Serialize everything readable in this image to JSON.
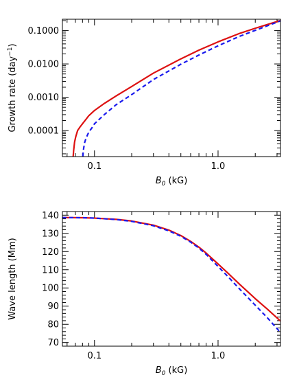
{
  "chart_data": [
    {
      "type": "line",
      "xscale": "log",
      "yscale": "log",
      "xlim": [
        0.055,
        3.2
      ],
      "ylim": [
        1.65e-05,
        0.22
      ],
      "xticks": [
        0.1,
        1.0
      ],
      "xtick_labels": [
        "0.1",
        "1.0"
      ],
      "yticks": [
        0.0001,
        0.001,
        0.01,
        0.1
      ],
      "ytick_labels": [
        "0.0001",
        "0.0010",
        "0.0100",
        "0.1000"
      ],
      "xlabel": "B",
      "xlabel_sub": "0",
      "xlabel_unit": "(kG)",
      "ylabel": "Growth rate (day",
      "ylabel_sup": "−1",
      "ylabel_close": ")",
      "series": [
        {
          "color": "#dd1111",
          "style": "solid",
          "x": [
            0.0672,
            0.0678,
            0.069,
            0.0705,
            0.073,
            0.076,
            0.08,
            0.09,
            0.1,
            0.12,
            0.15,
            0.2,
            0.3,
            0.5,
            0.7,
            1.0,
            1.5,
            2.0,
            3.2
          ],
          "y": [
            1.65e-05,
            2.5e-05,
            4.5e-05,
            6.5e-05,
            0.0001,
            0.000125,
            0.00016,
            0.00028,
            0.0004,
            0.00065,
            0.0011,
            0.0021,
            0.0053,
            0.0142,
            0.026,
            0.046,
            0.083,
            0.118,
            0.202
          ]
        },
        {
          "color": "#1a1aee",
          "style": "dashed",
          "x": [
            0.0805,
            0.0812,
            0.083,
            0.0855,
            0.09,
            0.096,
            0.1,
            0.12,
            0.15,
            0.2,
            0.3,
            0.5,
            0.7,
            1.0,
            1.5,
            2.0,
            3.2
          ],
          "y": [
            1.65e-05,
            2.5e-05,
            4.2e-05,
            6e-05,
            9e-05,
            0.000125,
            0.00016,
            0.0003,
            0.0006,
            0.0012,
            0.0034,
            0.0098,
            0.0185,
            0.035,
            0.068,
            0.102,
            0.196
          ]
        }
      ]
    },
    {
      "type": "line",
      "xscale": "log",
      "yscale": "linear",
      "xlim": [
        0.055,
        3.2
      ],
      "ylim": [
        68,
        142
      ],
      "xticks": [
        0.1,
        1.0
      ],
      "xtick_labels": [
        "0.1",
        "1.0"
      ],
      "yticks": [
        70,
        80,
        90,
        100,
        110,
        120,
        130,
        140
      ],
      "ytick_labels": [
        "70",
        "80",
        "90",
        "100",
        "110",
        "120",
        "130",
        "140"
      ],
      "xlabel": "B",
      "xlabel_sub": "0",
      "xlabel_unit": "(kG)",
      "ylabel": "Wave length (Mm)",
      "series": [
        {
          "color": "#dd1111",
          "style": "solid",
          "x": [
            0.055,
            0.08,
            0.1,
            0.15,
            0.2,
            0.3,
            0.4,
            0.5,
            0.6,
            0.7,
            0.8,
            1.0,
            1.2,
            1.5,
            2.0,
            2.5,
            3.2
          ],
          "y": [
            138.7,
            138.6,
            138.4,
            137.7,
            136.8,
            134.5,
            131.8,
            128.8,
            125.6,
            122.4,
            119.2,
            113.2,
            108.2,
            101.9,
            94.1,
            88.4,
            81.8
          ]
        },
        {
          "color": "#1a1aee",
          "style": "dashed",
          "x": [
            0.055,
            0.08,
            0.1,
            0.15,
            0.2,
            0.3,
            0.4,
            0.5,
            0.6,
            0.7,
            0.8,
            1.0,
            1.2,
            1.5,
            2.0,
            2.5,
            3.2
          ],
          "y": [
            138.7,
            138.6,
            138.4,
            137.6,
            136.6,
            134.2,
            131.4,
            128.4,
            125.2,
            121.9,
            118.5,
            111.8,
            106.3,
            99.3,
            90.5,
            83.7,
            75.5
          ]
        }
      ]
    }
  ]
}
